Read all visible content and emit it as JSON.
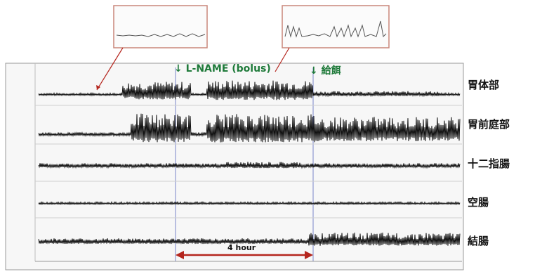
{
  "chart_data": {
    "type": "line",
    "channels": [
      {
        "name": "胃体部",
        "amp": 0.55,
        "bursts": [
          [
            0.2,
            0.36,
            0.9
          ],
          [
            0.4,
            0.65,
            1.0
          ],
          [
            0.62,
            0.95,
            0.25
          ]
        ]
      },
      {
        "name": "胃前庭部",
        "amp": 0.8,
        "bursts": [
          [
            0.22,
            0.36,
            1.0
          ],
          [
            0.4,
            0.66,
            1.0
          ],
          [
            0.66,
            1.0,
            0.85
          ]
        ]
      },
      {
        "name": "十二指腸",
        "amp": 0.55,
        "bursts": [
          [
            0.0,
            1.0,
            0.35
          ],
          [
            0.44,
            0.62,
            0.5
          ]
        ]
      },
      {
        "name": "空腸",
        "amp": 0.45,
        "bursts": [
          [
            0.0,
            1.0,
            0.3
          ]
        ]
      },
      {
        "name": "結腸",
        "amp": 0.7,
        "bursts": [
          [
            0.0,
            1.0,
            0.3
          ],
          [
            0.64,
            1.0,
            0.7
          ]
        ]
      }
    ],
    "annotations": [
      "↓ L-NAME (bolus)",
      "↓ 給餌"
    ],
    "duration_label": "4 hour",
    "colors": {
      "trace": "#111111",
      "marker": "#7a86c8",
      "arrow": "#b5261e",
      "annot": "#1f7a3a"
    }
  }
}
